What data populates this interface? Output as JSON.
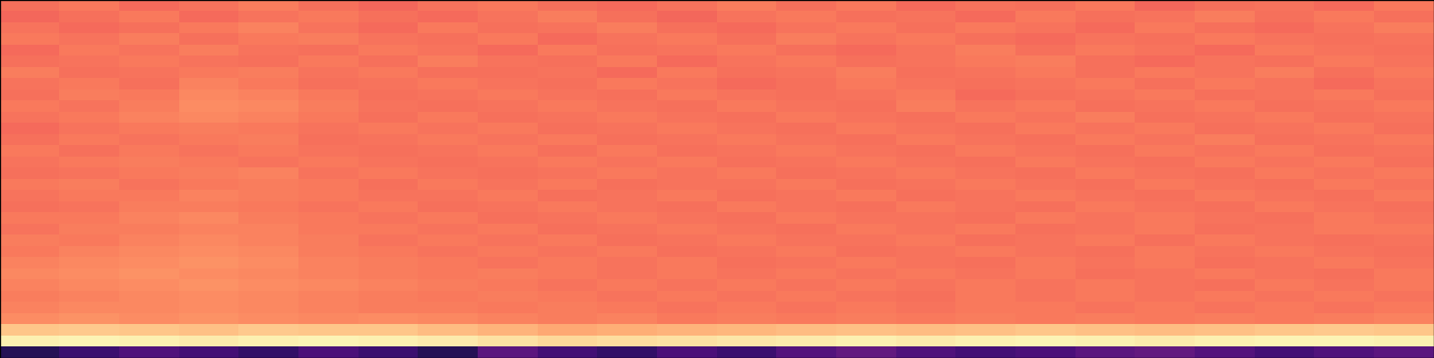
{
  "chart_data": {
    "type": "heatmap",
    "tick_labels": false,
    "color_range": [
      0,
      100
    ],
    "cells": [
      [
        70,
        72,
        69,
        71,
        73,
        70,
        68,
        71,
        72,
        70,
        69,
        71,
        73,
        70,
        72,
        69,
        71,
        70,
        72,
        68,
        70,
        71,
        69,
        72
      ],
      [
        68,
        70,
        72,
        69,
        71,
        72,
        70,
        69,
        71,
        73,
        70,
        68,
        71,
        72,
        70,
        71,
        69,
        72,
        70,
        71,
        73,
        70,
        72,
        70
      ],
      [
        71,
        69,
        70,
        72,
        74,
        71,
        69,
        72,
        70,
        71,
        73,
        70,
        69,
        71,
        72,
        70,
        72,
        71,
        69,
        72,
        70,
        69,
        71,
        73
      ],
      [
        72,
        71,
        73,
        70,
        72,
        73,
        71,
        70,
        72,
        69,
        71,
        72,
        70,
        73,
        71,
        72,
        70,
        69,
        71,
        70,
        72,
        71,
        70,
        71
      ],
      [
        69,
        72,
        71,
        73,
        71,
        70,
        72,
        71,
        69,
        72,
        70,
        71,
        72,
        70,
        69,
        71,
        73,
        70,
        72,
        71,
        69,
        72,
        71,
        70
      ],
      [
        70,
        71,
        72,
        71,
        70,
        72,
        70,
        73,
        71,
        70,
        72,
        69,
        71,
        72,
        70,
        71,
        72,
        73,
        70,
        69,
        71,
        70,
        72,
        71
      ],
      [
        73,
        70,
        71,
        72,
        73,
        71,
        72,
        70,
        70,
        71,
        69,
        72,
        70,
        71,
        73,
        70,
        71,
        72,
        70,
        72,
        71,
        73,
        70,
        72
      ],
      [
        71,
        72,
        70,
        74,
        72,
        70,
        71,
        72,
        71,
        70,
        72,
        71,
        69,
        70,
        72,
        71,
        70,
        71,
        72,
        70,
        72,
        71,
        69,
        71
      ],
      [
        70,
        73,
        72,
        75,
        74,
        72,
        70,
        71,
        72,
        71,
        70,
        72,
        71,
        70,
        71,
        72,
        69,
        70,
        71,
        72,
        70,
        71,
        72,
        70
      ],
      [
        72,
        71,
        73,
        76,
        75,
        73,
        71,
        70,
        71,
        72,
        71,
        70,
        72,
        71,
        70,
        73,
        71,
        72,
        70,
        71,
        72,
        70,
        71,
        72
      ],
      [
        71,
        72,
        74,
        75,
        74,
        72,
        70,
        72,
        70,
        71,
        72,
        71,
        70,
        72,
        71,
        70,
        72,
        71,
        73,
        70,
        71,
        72,
        70,
        71
      ],
      [
        69,
        71,
        72,
        73,
        72,
        71,
        72,
        71,
        72,
        70,
        71,
        72,
        71,
        70,
        72,
        71,
        70,
        72,
        71,
        72,
        70,
        71,
        72,
        70
      ],
      [
        70,
        72,
        71,
        72,
        73,
        70,
        71,
        72,
        71,
        72,
        70,
        71,
        72,
        71,
        70,
        72,
        71,
        70,
        72,
        71,
        73,
        70,
        71,
        72
      ],
      [
        72,
        70,
        72,
        71,
        72,
        71,
        70,
        71,
        72,
        70,
        72,
        70,
        71,
        72,
        71,
        70,
        72,
        71,
        70,
        72,
        71,
        72,
        70,
        71
      ],
      [
        71,
        72,
        73,
        72,
        71,
        72,
        71,
        70,
        71,
        72,
        71,
        72,
        70,
        71,
        72,
        71,
        70,
        72,
        71,
        70,
        72,
        71,
        72,
        70
      ],
      [
        70,
        71,
        72,
        73,
        74,
        71,
        72,
        71,
        70,
        71,
        72,
        71,
        72,
        70,
        71,
        72,
        71,
        70,
        72,
        71,
        70,
        72,
        71,
        72
      ],
      [
        72,
        73,
        71,
        72,
        73,
        72,
        70,
        72,
        71,
        72,
        70,
        71,
        71,
        72,
        70,
        71,
        72,
        71,
        70,
        72,
        71,
        70,
        72,
        71
      ],
      [
        71,
        72,
        72,
        74,
        73,
        72,
        71,
        71,
        72,
        70,
        71,
        72,
        70,
        71,
        72,
        70,
        71,
        72,
        71,
        70,
        72,
        71,
        70,
        72
      ],
      [
        70,
        71,
        73,
        73,
        72,
        71,
        72,
        70,
        71,
        72,
        71,
        70,
        72,
        71,
        70,
        72,
        71,
        70,
        72,
        71,
        70,
        72,
        71,
        70
      ],
      [
        72,
        72,
        74,
        75,
        73,
        72,
        71,
        72,
        70,
        71,
        72,
        71,
        70,
        72,
        71,
        71,
        70,
        72,
        71,
        72,
        71,
        70,
        72,
        71
      ],
      [
        71,
        73,
        73,
        74,
        74,
        72,
        72,
        71,
        72,
        70,
        71,
        72,
        71,
        70,
        72,
        71,
        72,
        70,
        71,
        72,
        70,
        71,
        72,
        72
      ],
      [
        73,
        72,
        74,
        75,
        74,
        73,
        71,
        72,
        71,
        72,
        70,
        71,
        72,
        71,
        71,
        72,
        70,
        71,
        72,
        70,
        72,
        71,
        70,
        71
      ],
      [
        72,
        74,
        75,
        76,
        75,
        73,
        72,
        71,
        72,
        71,
        72,
        70,
        71,
        72,
        70,
        71,
        72,
        71,
        70,
        72,
        71,
        72,
        71,
        70
      ],
      [
        74,
        75,
        76,
        77,
        76,
        74,
        73,
        72,
        71,
        72,
        71,
        72,
        70,
        71,
        72,
        71,
        70,
        72,
        71,
        72,
        70,
        71,
        72,
        71
      ],
      [
        75,
        76,
        77,
        76,
        75,
        74,
        73,
        72,
        73,
        72,
        71,
        72,
        71,
        72,
        71,
        72,
        71,
        72,
        70,
        71,
        72,
        71,
        70,
        72
      ],
      [
        74,
        75,
        76,
        77,
        76,
        75,
        74,
        73,
        72,
        71,
        72,
        71,
        72,
        71,
        72,
        71,
        72,
        71,
        72,
        71,
        70,
        72,
        71,
        72
      ],
      [
        73,
        74,
        75,
        76,
        75,
        74,
        73,
        72,
        73,
        72,
        71,
        72,
        71,
        72,
        71,
        70,
        72,
        71,
        72,
        71,
        72,
        71,
        72,
        71
      ],
      [
        74,
        75,
        75,
        76,
        75,
        74,
        73,
        73,
        72,
        73,
        72,
        71,
        72,
        71,
        72,
        71,
        72,
        72,
        71,
        72,
        71,
        72,
        71,
        72
      ],
      [
        76,
        77,
        76,
        77,
        76,
        75,
        76,
        75,
        74,
        73,
        74,
        72,
        73,
        72,
        73,
        72,
        73,
        72,
        73,
        72,
        73,
        72,
        73,
        74
      ],
      [
        88,
        89,
        88,
        87,
        89,
        88,
        88,
        86,
        84,
        82,
        83,
        84,
        85,
        86,
        87,
        86,
        87,
        88,
        87,
        86,
        87,
        88,
        89,
        88
      ],
      [
        97,
        98,
        97,
        96,
        97,
        98,
        97,
        96,
        94,
        92,
        93,
        94,
        95,
        96,
        97,
        96,
        97,
        98,
        97,
        96,
        97,
        98,
        98,
        97
      ],
      [
        15,
        20,
        25,
        22,
        18,
        24,
        20,
        15,
        28,
        22,
        18,
        24,
        20,
        26,
        30,
        25,
        22,
        24,
        28,
        30,
        26,
        22,
        25,
        28
      ]
    ]
  }
}
